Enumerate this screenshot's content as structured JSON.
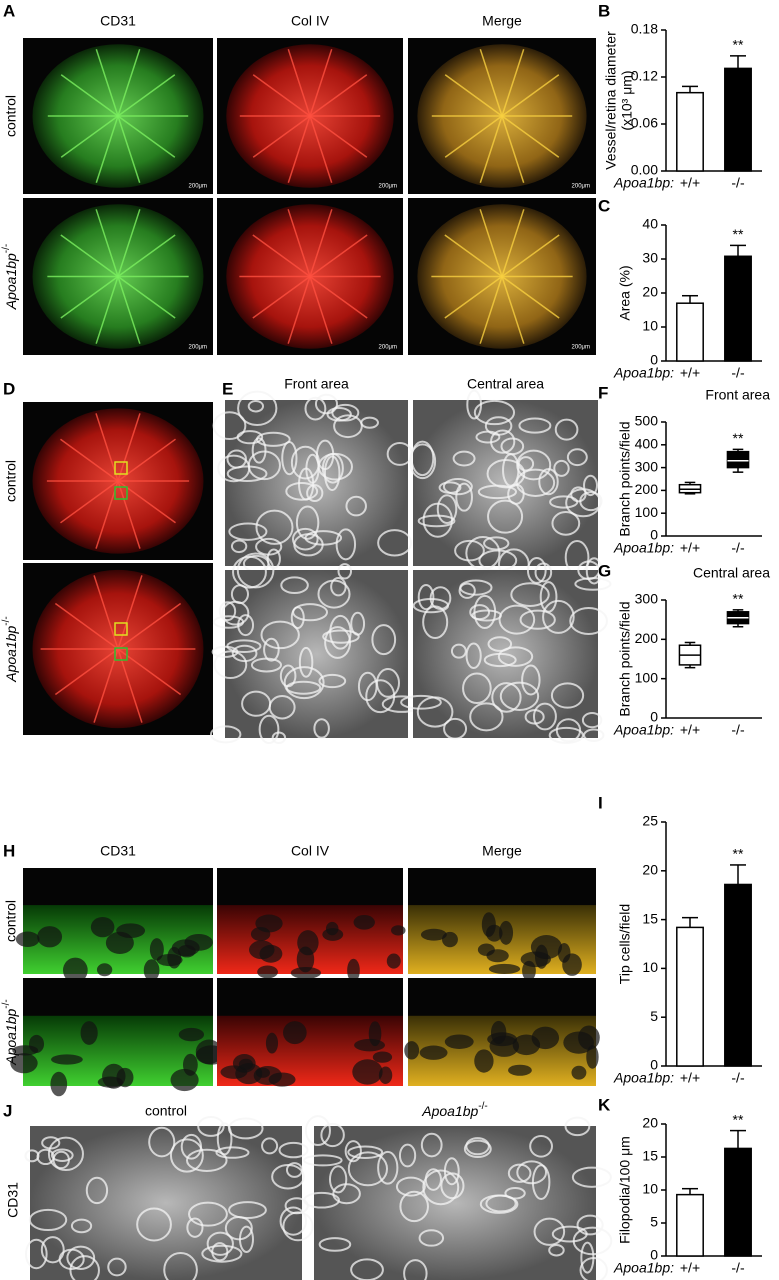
{
  "chart_data": [
    {
      "type": "bar",
      "panel": "B",
      "y_label": [
        "Vessel/retina diameter",
        "(x10³ μm)"
      ],
      "x_label": "Apoa1bp:",
      "categories": [
        "+/+",
        "-/-"
      ],
      "values": [
        0.1,
        0.131
      ],
      "errors": [
        0.008,
        0.016
      ],
      "colors": [
        "#ffffff",
        "#000000"
      ],
      "significance": [
        null,
        "**"
      ],
      "ylim": [
        0,
        0.18
      ],
      "yticks": [
        {
          "value": 0,
          "label": "0.00"
        },
        0.06,
        0.12,
        0.18
      ]
    },
    {
      "type": "bar",
      "panel": "C",
      "y_label": [
        "Area (%)"
      ],
      "x_label": "Apoa1bp:",
      "categories": [
        "+/+",
        "-/-"
      ],
      "values": [
        17,
        30.8
      ],
      "errors": [
        2.2,
        3.2
      ],
      "colors": [
        "#ffffff",
        "#000000"
      ],
      "significance": [
        null,
        "**"
      ],
      "ylim": [
        0,
        40
      ],
      "yticks": [
        0,
        10,
        20,
        30,
        40
      ]
    },
    {
      "type": "box",
      "panel": "F",
      "title": "Front area",
      "y_label": [
        "Branch points/field"
      ],
      "x_label": "Apoa1bp:",
      "categories": [
        "+/+",
        "-/-"
      ],
      "boxes": [
        {
          "min": 185,
          "q1": 190,
          "median": 205,
          "q3": 225,
          "max": 235
        },
        {
          "min": 280,
          "q1": 300,
          "median": 330,
          "q3": 370,
          "max": 380
        }
      ],
      "colors": [
        "#ffffff",
        "#000000"
      ],
      "significance": [
        null,
        "**"
      ],
      "ylim": [
        0,
        500
      ],
      "yticks": [
        0,
        100,
        200,
        300,
        400,
        500
      ]
    },
    {
      "type": "box",
      "panel": "G",
      "title": "Central area",
      "y_label": [
        "Branch points/field"
      ],
      "x_label": "Apoa1bp:",
      "categories": [
        "+/+",
        "-/-"
      ],
      "boxes": [
        {
          "min": 128,
          "q1": 135,
          "median": 160,
          "q3": 185,
          "max": 192
        },
        {
          "min": 232,
          "q1": 240,
          "median": 255,
          "q3": 270,
          "max": 275
        }
      ],
      "colors": [
        "#ffffff",
        "#000000"
      ],
      "significance": [
        null,
        "**"
      ],
      "ylim": [
        0,
        300
      ],
      "yticks": [
        0,
        100,
        200,
        300
      ]
    },
    {
      "type": "bar",
      "panel": "I",
      "y_label": [
        "Tip cells/field"
      ],
      "x_label": "Apoa1bp:",
      "categories": [
        "+/+",
        "-/-"
      ],
      "values": [
        14.2,
        18.6
      ],
      "errors": [
        1,
        2
      ],
      "colors": [
        "#ffffff",
        "#000000"
      ],
      "significance": [
        null,
        "**"
      ],
      "ylim": [
        0,
        25
      ],
      "yticks": [
        0,
        5,
        10,
        15,
        20,
        25
      ]
    },
    {
      "type": "bar",
      "panel": "K",
      "y_label": [
        "Filopodia/100 μm"
      ],
      "x_label": "Apoa1bp:",
      "categories": [
        "+/+",
        "-/-"
      ],
      "values": [
        9.3,
        16.3
      ],
      "errors": [
        0.9,
        2.7
      ],
      "colors": [
        "#ffffff",
        "#000000"
      ],
      "significance": [
        null,
        "**"
      ],
      "ylim": [
        0,
        20
      ],
      "yticks": [
        0,
        5,
        10,
        15,
        20
      ]
    }
  ],
  "figure": {
    "A": {
      "label": "A",
      "columns": [
        "CD31",
        "Col IV",
        "Merge"
      ],
      "rows": [
        "control",
        {
          "name": "Apoa1bp",
          "sup": "-/-"
        }
      ],
      "scale": "200μm"
    },
    "D": {
      "label": "D",
      "rows": [
        "control",
        {
          "name": "Apoa1bp",
          "sup": "-/-"
        }
      ]
    },
    "E": {
      "label": "E",
      "columns": [
        "Front area",
        "Central area"
      ]
    },
    "H": {
      "label": "H",
      "columns": [
        "CD31",
        "Col IV",
        "Merge"
      ],
      "rows": [
        "control",
        {
          "name": "Apoa1bp",
          "sup": "-/-"
        }
      ]
    },
    "J": {
      "label": "J",
      "columns": [
        "control",
        {
          "name": "Apoa1bp",
          "sup": "-/-"
        }
      ],
      "row": "CD31"
    }
  }
}
